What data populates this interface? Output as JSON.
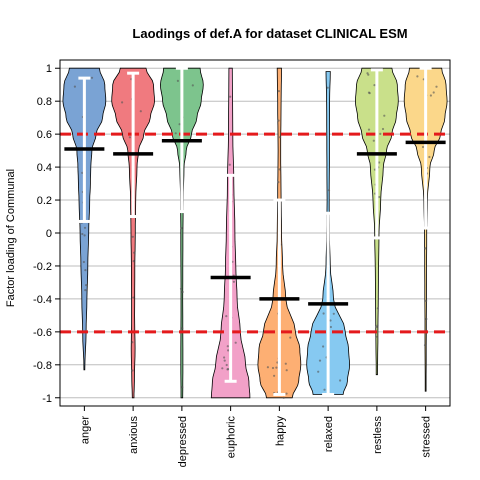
{
  "chart_data": {
    "type": "violin",
    "title": "Laodings of def.A for dataset CLINICAL ESM",
    "xlabel": "",
    "ylabel": "Factor loading of Communal",
    "ylim": [
      -1.05,
      1.05
    ],
    "yticks": [
      1,
      0.8,
      0.6,
      0.4,
      0.2,
      0,
      -0.2,
      -0.4,
      -0.6,
      -0.8,
      -1
    ],
    "ytick_labels": [
      "1",
      "0.8",
      "0.6",
      "0.4",
      "0.2",
      "0",
      "-0.2",
      "-0.4",
      "-0.6",
      "-0.8",
      "-1"
    ],
    "grid": true,
    "reference_lines": [
      {
        "y": 0.6,
        "color": "#e41a1c",
        "style": "dashed"
      },
      {
        "y": -0.6,
        "color": "#e41a1c",
        "style": "dashed"
      }
    ],
    "categories": [
      "anger",
      "anxious",
      "depressed",
      "euphoric",
      "happy",
      "relaxed",
      "restless",
      "stressed"
    ],
    "series": [
      {
        "category": "anger",
        "color": "#7aa3d4",
        "mean": 0.51,
        "hdi": [
          0.07,
          0.94
        ],
        "range": [
          -0.83,
          1.0
        ]
      },
      {
        "category": "anxious",
        "color": "#f07a7f",
        "mean": 0.48,
        "hdi": [
          0.1,
          0.97
        ],
        "range": [
          -1.0,
          1.0
        ]
      },
      {
        "category": "depressed",
        "color": "#7dc48d",
        "mean": 0.56,
        "hdi": [
          0.13,
          1.0
        ],
        "range": [
          -1.0,
          1.0
        ]
      },
      {
        "category": "euphoric",
        "color": "#f2a1c8",
        "mean": -0.27,
        "hdi": [
          -0.9,
          0.35
        ],
        "range": [
          -1.0,
          1.0
        ]
      },
      {
        "category": "happy",
        "color": "#fdaf73",
        "mean": -0.4,
        "hdi": [
          -0.98,
          0.2
        ],
        "range": [
          -1.0,
          1.0
        ]
      },
      {
        "category": "relaxed",
        "color": "#86c9f1",
        "mean": -0.43,
        "hdi": [
          -0.98,
          0.12
        ],
        "range": [
          -0.98,
          0.98
        ]
      },
      {
        "category": "restless",
        "color": "#c9e08a",
        "mean": 0.48,
        "hdi": [
          -0.03,
          0.99
        ],
        "range": [
          -0.86,
          1.0
        ]
      },
      {
        "category": "stressed",
        "color": "#fbd78a",
        "mean": 0.55,
        "hdi": [
          0.03,
          1.0
        ],
        "range": [
          -0.96,
          1.0
        ]
      }
    ]
  }
}
